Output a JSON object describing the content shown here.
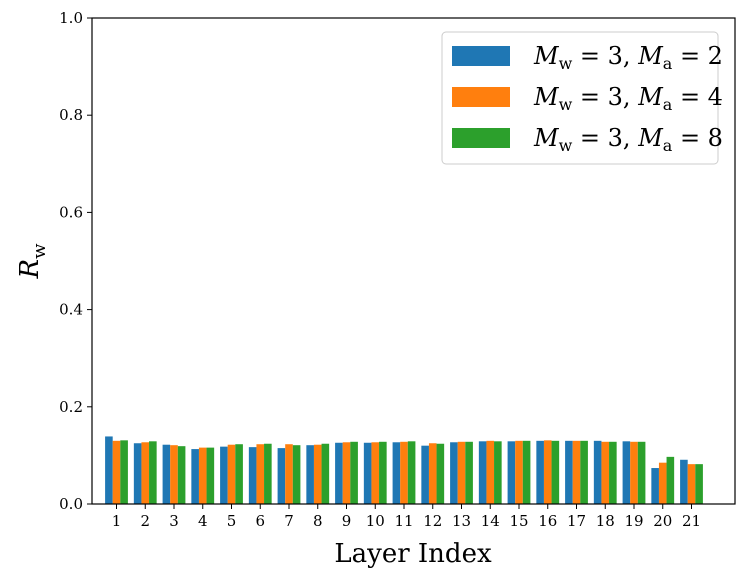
{
  "chart_data": {
    "type": "bar",
    "xlabel": "Layer Index",
    "ylabel_main": "R",
    "ylabel_sub": "w",
    "ylim": [
      0.0,
      1.0
    ],
    "yticks": [
      "0.0",
      "0.2",
      "0.4",
      "0.6",
      "0.8",
      "1.0"
    ],
    "grid": false,
    "legend_position": "top-right",
    "categories": [
      "1",
      "2",
      "3",
      "4",
      "5",
      "6",
      "7",
      "8",
      "9",
      "10",
      "11",
      "12",
      "13",
      "14",
      "15",
      "16",
      "17",
      "18",
      "19",
      "20",
      "21"
    ],
    "series": [
      {
        "name": "M_w = 3, M_a = 2",
        "color": "#1f77b4",
        "values": [
          0.139,
          0.125,
          0.122,
          0.113,
          0.118,
          0.117,
          0.115,
          0.121,
          0.126,
          0.126,
          0.127,
          0.12,
          0.127,
          0.129,
          0.129,
          0.13,
          0.13,
          0.13,
          0.129,
          0.074,
          0.091
        ]
      },
      {
        "name": "M_w = 3, M_a = 4",
        "color": "#ff7f0e",
        "values": [
          0.13,
          0.127,
          0.121,
          0.116,
          0.122,
          0.123,
          0.123,
          0.122,
          0.127,
          0.127,
          0.128,
          0.125,
          0.128,
          0.13,
          0.13,
          0.131,
          0.13,
          0.128,
          0.128,
          0.085,
          0.082
        ]
      },
      {
        "name": "M_w = 3, M_a = 8",
        "color": "#2ca02c",
        "values": [
          0.131,
          0.129,
          0.119,
          0.116,
          0.123,
          0.124,
          0.121,
          0.124,
          0.128,
          0.128,
          0.129,
          0.124,
          0.128,
          0.129,
          0.13,
          0.13,
          0.13,
          0.128,
          0.128,
          0.097,
          0.082
        ]
      }
    ]
  },
  "legend": [
    {
      "m1": "M",
      "s1": "w",
      "eq1": " = 3, ",
      "m2": "M",
      "s2": "a",
      "eq2": " = 2",
      "color": "#1f77b4"
    },
    {
      "m1": "M",
      "s1": "w",
      "eq1": " = 3, ",
      "m2": "M",
      "s2": "a",
      "eq2": " = 4",
      "color": "#ff7f0e"
    },
    {
      "m1": "M",
      "s1": "w",
      "eq1": " = 3, ",
      "m2": "M",
      "s2": "a",
      "eq2": " = 8",
      "color": "#2ca02c"
    }
  ]
}
